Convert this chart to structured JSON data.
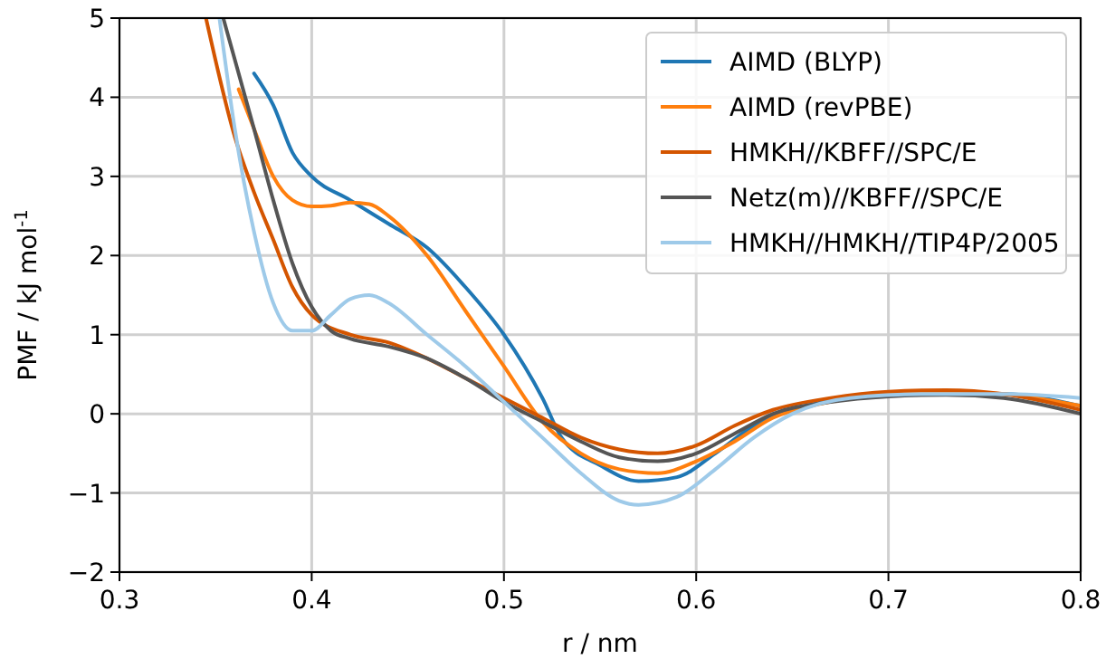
{
  "chart_data": {
    "type": "line",
    "xlabel": "r / nm",
    "ylabel": "PMF / kJ mol$^{-1}$",
    "xlim": [
      0.3,
      0.8
    ],
    "ylim": [
      -2,
      5
    ],
    "xticks": [
      0.3,
      0.4,
      0.5,
      0.6,
      0.7,
      0.8
    ],
    "yticks": [
      {
        "value": -2,
        "label": "−2"
      },
      {
        "value": -1,
        "label": "−1"
      },
      0,
      1,
      2,
      3,
      4,
      5
    ],
    "grid": true,
    "legend": "top right",
    "line_style": "solid",
    "series": [
      {
        "name": "AIMD (BLYP)",
        "color": "#1f77b4",
        "x": [
          0.37,
          0.38,
          0.39,
          0.4,
          0.42,
          0.44,
          0.46,
          0.48,
          0.5,
          0.52,
          0.53,
          0.55,
          0.57,
          0.59,
          0.61,
          0.63,
          0.65,
          0.68,
          0.72,
          0.76,
          0.8
        ],
        "values": [
          4.3,
          3.9,
          3.3,
          3.0,
          2.7,
          2.4,
          2.1,
          1.6,
          1.0,
          0.2,
          -0.3,
          -0.65,
          -0.85,
          -0.8,
          -0.5,
          -0.15,
          0.05,
          0.2,
          0.25,
          0.25,
          0.1
        ]
      },
      {
        "name": "AIMD (revPBE)",
        "color": "#ff7f0e",
        "x": [
          0.362,
          0.37,
          0.38,
          0.39,
          0.4,
          0.41,
          0.42,
          0.43,
          0.44,
          0.46,
          0.48,
          0.5,
          0.52,
          0.54,
          0.56,
          0.58,
          0.6,
          0.62,
          0.64,
          0.66,
          0.7,
          0.73,
          0.76,
          0.8
        ],
        "values": [
          4.1,
          3.6,
          3.0,
          2.7,
          2.62,
          2.63,
          2.67,
          2.65,
          2.5,
          2.0,
          1.3,
          0.6,
          -0.1,
          -0.5,
          -0.7,
          -0.75,
          -0.6,
          -0.35,
          -0.05,
          0.1,
          0.25,
          0.28,
          0.25,
          0.1
        ]
      },
      {
        "name": "HMKH//KBFF//SPC/E",
        "color": "#d45500",
        "x": [
          0.345,
          0.36,
          0.37,
          0.38,
          0.39,
          0.4,
          0.42,
          0.44,
          0.46,
          0.48,
          0.5,
          0.52,
          0.54,
          0.56,
          0.58,
          0.6,
          0.62,
          0.64,
          0.67,
          0.7,
          0.73,
          0.76,
          0.8
        ],
        "values": [
          5,
          3.5,
          2.8,
          2.2,
          1.6,
          1.25,
          1.0,
          0.9,
          0.7,
          0.45,
          0.2,
          -0.05,
          -0.3,
          -0.45,
          -0.5,
          -0.4,
          -0.15,
          0.05,
          0.2,
          0.28,
          0.3,
          0.25,
          0.05
        ]
      },
      {
        "name": "Netz(m)//KBFF//SPC/E",
        "color": "#555555",
        "x": [
          0.354,
          0.37,
          0.38,
          0.39,
          0.4,
          0.41,
          0.42,
          0.44,
          0.46,
          0.48,
          0.5,
          0.52,
          0.54,
          0.56,
          0.58,
          0.6,
          0.62,
          0.64,
          0.67,
          0.7,
          0.73,
          0.76,
          0.8
        ],
        "values": [
          5,
          3.6,
          2.7,
          1.9,
          1.35,
          1.05,
          0.95,
          0.85,
          0.7,
          0.45,
          0.15,
          -0.1,
          -0.35,
          -0.55,
          -0.6,
          -0.5,
          -0.25,
          0.0,
          0.15,
          0.22,
          0.24,
          0.2,
          0.0
        ]
      },
      {
        "name": "HMKH//HMKH//TIP4P/2005",
        "color": "#9ecae9",
        "x": [
          0.352,
          0.36,
          0.37,
          0.38,
          0.39,
          0.4,
          0.41,
          0.42,
          0.43,
          0.44,
          0.46,
          0.48,
          0.5,
          0.52,
          0.54,
          0.56,
          0.57,
          0.59,
          0.61,
          0.63,
          0.65,
          0.68,
          0.72,
          0.76,
          0.8
        ],
        "values": [
          5,
          3.6,
          2.3,
          1.4,
          1.05,
          1.05,
          1.25,
          1.45,
          1.5,
          1.4,
          1.0,
          0.6,
          0.15,
          -0.3,
          -0.75,
          -1.1,
          -1.15,
          -1.05,
          -0.7,
          -0.3,
          0.0,
          0.2,
          0.25,
          0.25,
          0.2
        ]
      }
    ]
  }
}
